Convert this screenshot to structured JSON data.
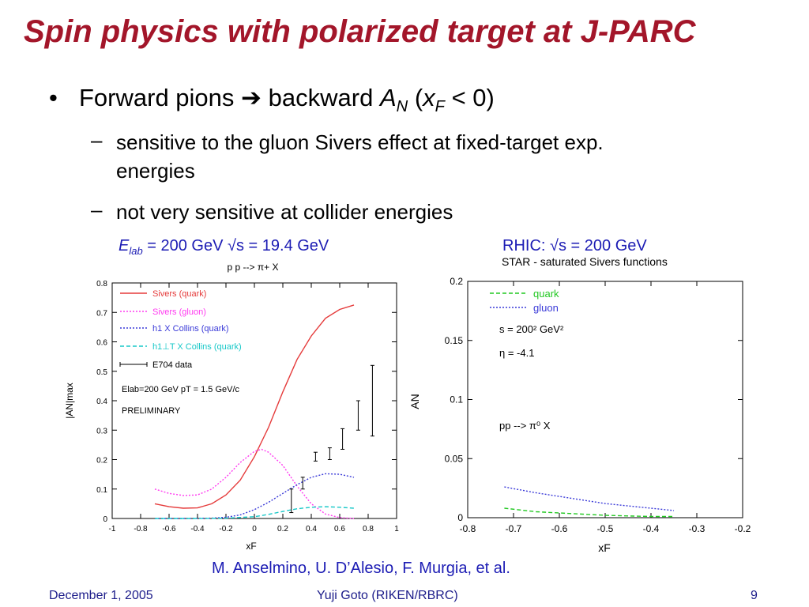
{
  "slide": {
    "title": "Spin physics with polarized target at J-PARC",
    "bullet": {
      "marker": "•",
      "text_a": "Forward pions",
      "arrow": "➔",
      "text_b": "backward",
      "an_sym": "A",
      "an_sub": "N",
      "paren_open": "(",
      "xf_sym": "x",
      "xf_sub": "F",
      "cond": "< 0)"
    },
    "sub1": {
      "dash": "–",
      "line1": "sensitive to the gluon Sivers effect at fixed-target exp.",
      "line2": "energies"
    },
    "sub2": {
      "dash": "–",
      "text": "not very sensitive at collider energies"
    },
    "left_caption": {
      "e": "E",
      "sub": "lab",
      "rest": " = 200 GeV √s = 19.4 GeV"
    },
    "right_caption": "RHIC: √s = 200 GeV",
    "credit": "M. Anselmino, U. D’Alesio, F. Murgia, et al.",
    "footer": {
      "date": "December 1, 2005",
      "author": "Yuji Goto (RIKEN/RBRC)",
      "page": "9"
    }
  },
  "chart_data": [
    {
      "type": "line",
      "title": "p p --> π+ X",
      "xlabel": "xF",
      "ylabel": "|AN|max",
      "xlim": [
        -1,
        1
      ],
      "ylim": [
        0,
        0.8
      ],
      "x_ticks": [
        "-1",
        "-0.8",
        "-0.6",
        "-0.4",
        "-0.2",
        "0",
        "0.2",
        "0.4",
        "0.6",
        "0.8",
        "1"
      ],
      "y_ticks": [
        "0",
        "0.1",
        "0.2",
        "0.3",
        "0.4",
        "0.5",
        "0.6",
        "0.7",
        "0.8"
      ],
      "annotations": [
        "Elab=200 GeV  pT = 1.5 GeV/c",
        "PRELIMINARY"
      ],
      "legend": [
        "Sivers (quark)",
        "Sivers (gluon)",
        "h1 X Collins (quark)",
        "h1⊥T X Collins (quark)",
        "E704 data"
      ],
      "series": [
        {
          "name": "Sivers (quark)",
          "color": "#e53b3b",
          "style": "solid",
          "x": [
            -0.7,
            -0.6,
            -0.5,
            -0.4,
            -0.3,
            -0.2,
            -0.1,
            0,
            0.1,
            0.2,
            0.3,
            0.4,
            0.5,
            0.6,
            0.7
          ],
          "y": [
            0.05,
            0.04,
            0.035,
            0.036,
            0.05,
            0.08,
            0.13,
            0.21,
            0.31,
            0.43,
            0.54,
            0.62,
            0.68,
            0.71,
            0.725
          ]
        },
        {
          "name": "Sivers (gluon)",
          "color": "#ff3cf0",
          "style": "dotted",
          "x": [
            -0.7,
            -0.6,
            -0.5,
            -0.4,
            -0.3,
            -0.2,
            -0.1,
            0,
            0.05,
            0.1,
            0.2,
            0.3,
            0.4,
            0.5,
            0.6,
            0.7
          ],
          "y": [
            0.1,
            0.085,
            0.078,
            0.08,
            0.1,
            0.14,
            0.19,
            0.228,
            0.235,
            0.225,
            0.18,
            0.11,
            0.05,
            0.015,
            0.003,
            0
          ]
        },
        {
          "name": "h1 X Collins (quark)",
          "color": "#3a3ad8",
          "style": "dotted",
          "x": [
            -0.7,
            -0.5,
            -0.3,
            -0.2,
            -0.1,
            0,
            0.1,
            0.2,
            0.3,
            0.4,
            0.5,
            0.6,
            0.7
          ],
          "y": [
            0,
            0,
            0.001,
            0.004,
            0.012,
            0.03,
            0.055,
            0.085,
            0.115,
            0.14,
            0.152,
            0.15,
            0.14
          ]
        },
        {
          "name": "h1⊥T X Collins (quark)",
          "color": "#18c8c8",
          "style": "dashed",
          "x": [
            -0.7,
            -0.4,
            -0.2,
            0,
            0.1,
            0.2,
            0.3,
            0.4,
            0.5,
            0.6,
            0.7
          ],
          "y": [
            0,
            0,
            0.001,
            0.006,
            0.014,
            0.024,
            0.033,
            0.038,
            0.04,
            0.038,
            0.035
          ]
        }
      ],
      "points": {
        "name": "E704 data",
        "x": [
          0.26,
          0.34,
          0.43,
          0.53,
          0.62,
          0.73,
          0.83
        ],
        "y": [
          0.06,
          0.12,
          0.21,
          0.22,
          0.27,
          0.35,
          0.4
        ],
        "err": [
          0.04,
          0.02,
          0.015,
          0.02,
          0.035,
          0.05,
          0.12
        ]
      }
    },
    {
      "type": "line",
      "title": "STAR - saturated Sivers functions",
      "xlabel": "xF",
      "ylabel": "AN",
      "xlim": [
        -0.8,
        -0.2
      ],
      "ylim": [
        0,
        0.2
      ],
      "x_ticks": [
        "-0.8",
        "-0.7",
        "-0.6",
        "-0.5",
        "-0.4",
        "-0.3",
        "-0.2"
      ],
      "y_ticks": [
        "0",
        "0.05",
        "0.1",
        "0.15",
        "0.2"
      ],
      "annotations": [
        "s = 200² GeV²",
        "η = -4.1",
        "pp --> π⁰ X"
      ],
      "legend": [
        "quark",
        "gluon"
      ],
      "series": [
        {
          "name": "quark",
          "color": "#22c822",
          "style": "dashed",
          "x": [
            -0.72,
            -0.65,
            -0.6,
            -0.55,
            -0.5,
            -0.45,
            -0.4,
            -0.35
          ],
          "y": [
            0.008,
            0.005,
            0.004,
            0.003,
            0.002,
            0.0015,
            0.001,
            0.001
          ]
        },
        {
          "name": "gluon",
          "color": "#3a3ad8",
          "style": "dotted",
          "x": [
            -0.72,
            -0.65,
            -0.6,
            -0.55,
            -0.5,
            -0.45,
            -0.4,
            -0.35
          ],
          "y": [
            0.026,
            0.021,
            0.018,
            0.015,
            0.012,
            0.01,
            0.008,
            0.006
          ]
        }
      ]
    }
  ]
}
